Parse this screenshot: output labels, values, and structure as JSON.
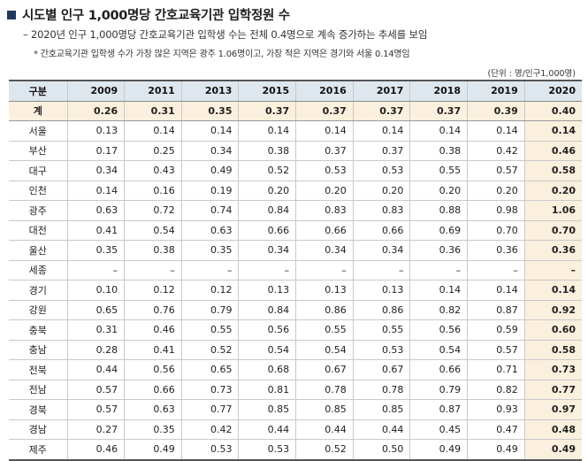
{
  "title": "시도별 인구 1,000명당 간호교육기관 입학정원 수",
  "subtitle": "– 2020년 인구 1,000명당 간호교육기관 입학생 수는 전체 0.4명으로 계속 증가하는 추세를 보임",
  "note": "* 간호교육기관 입학생 수가 가장 많은 지역은 광주 1.06명이고, 가장 적은 지역은 경기와 서울 0.14명임",
  "unit": "(단위 : 명/인구1,000명)",
  "table": {
    "headers": [
      "구분",
      "2009",
      "2011",
      "2013",
      "2015",
      "2016",
      "2017",
      "2018",
      "2019",
      "2020"
    ],
    "rows": [
      {
        "region": "계",
        "values": [
          "0.26",
          "0.31",
          "0.35",
          "0.37",
          "0.37",
          "0.37",
          "0.37",
          "0.39",
          "0.40"
        ]
      },
      {
        "region": "서울",
        "values": [
          "0.13",
          "0.14",
          "0.14",
          "0.14",
          "0.14",
          "0.14",
          "0.14",
          "0.14",
          "0.14"
        ]
      },
      {
        "region": "부산",
        "values": [
          "0.17",
          "0.25",
          "0.34",
          "0.38",
          "0.37",
          "0.37",
          "0.38",
          "0.42",
          "0.46"
        ]
      },
      {
        "region": "대구",
        "values": [
          "0.34",
          "0.43",
          "0.49",
          "0.52",
          "0.53",
          "0.53",
          "0.55",
          "0.57",
          "0.58"
        ]
      },
      {
        "region": "인천",
        "values": [
          "0.14",
          "0.16",
          "0.19",
          "0.20",
          "0.20",
          "0.20",
          "0.20",
          "0.20",
          "0.20"
        ]
      },
      {
        "region": "광주",
        "values": [
          "0.63",
          "0.72",
          "0.74",
          "0.84",
          "0.83",
          "0.83",
          "0.88",
          "0.98",
          "1.06"
        ]
      },
      {
        "region": "대전",
        "values": [
          "0.41",
          "0.54",
          "0.63",
          "0.66",
          "0.66",
          "0.66",
          "0.69",
          "0.70",
          "0.70"
        ]
      },
      {
        "region": "울산",
        "values": [
          "0.35",
          "0.38",
          "0.35",
          "0.34",
          "0.34",
          "0.34",
          "0.36",
          "0.36",
          "0.36"
        ]
      },
      {
        "region": "세종",
        "values": [
          "–",
          "–",
          "–",
          "–",
          "–",
          "–",
          "–",
          "–",
          "–"
        ]
      },
      {
        "region": "경기",
        "values": [
          "0.10",
          "0.12",
          "0.12",
          "0.13",
          "0.13",
          "0.13",
          "0.14",
          "0.14",
          "0.14"
        ]
      },
      {
        "region": "강원",
        "values": [
          "0.65",
          "0.76",
          "0.79",
          "0.84",
          "0.86",
          "0.86",
          "0.82",
          "0.87",
          "0.92"
        ]
      },
      {
        "region": "충북",
        "values": [
          "0.31",
          "0.46",
          "0.55",
          "0.56",
          "0.55",
          "0.55",
          "0.56",
          "0.59",
          "0.60"
        ]
      },
      {
        "region": "충남",
        "values": [
          "0.28",
          "0.41",
          "0.52",
          "0.54",
          "0.54",
          "0.53",
          "0.54",
          "0.57",
          "0.58"
        ]
      },
      {
        "region": "전북",
        "values": [
          "0.44",
          "0.56",
          "0.65",
          "0.68",
          "0.67",
          "0.67",
          "0.66",
          "0.71",
          "0.73"
        ]
      },
      {
        "region": "전남",
        "values": [
          "0.57",
          "0.66",
          "0.73",
          "0.81",
          "0.78",
          "0.78",
          "0.79",
          "0.82",
          "0.77"
        ]
      },
      {
        "region": "경북",
        "values": [
          "0.57",
          "0.63",
          "0.77",
          "0.85",
          "0.85",
          "0.85",
          "0.87",
          "0.93",
          "0.97"
        ]
      },
      {
        "region": "경남",
        "values": [
          "0.27",
          "0.35",
          "0.42",
          "0.44",
          "0.44",
          "0.44",
          "0.45",
          "0.47",
          "0.48"
        ]
      },
      {
        "region": "제주",
        "values": [
          "0.46",
          "0.49",
          "0.53",
          "0.53",
          "0.52",
          "0.50",
          "0.49",
          "0.49",
          "0.49"
        ]
      }
    ]
  },
  "colors": {
    "header_bg": "#dfe7ee",
    "highlight_bg": "#fbf0de",
    "title_marker": "#1f3a5f"
  }
}
